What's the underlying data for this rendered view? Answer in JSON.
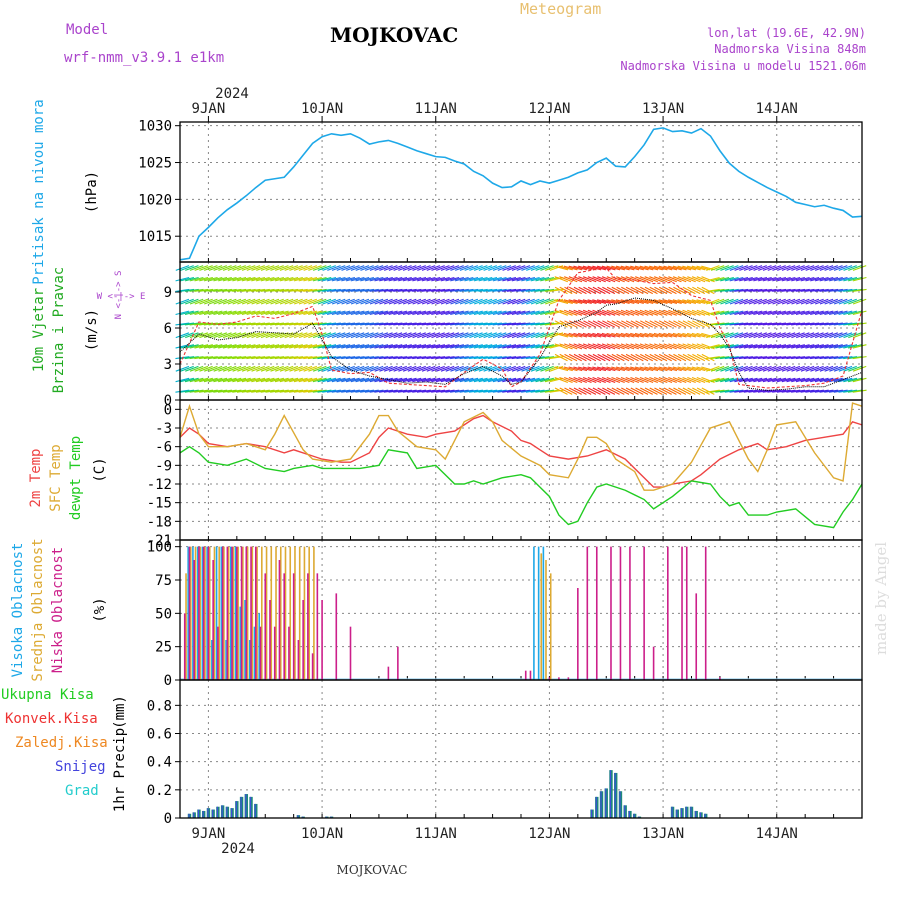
{
  "header": {
    "model_label": "Model",
    "model_name": "wrf-nmm_v3.9.1 e1km",
    "station": "MOJKOVAC",
    "meteogram": "Meteogram",
    "lonlat": "lon,lat (19.6E, 42.9N)",
    "elevation": "Nadmorska Visina 848m",
    "model_elevation": "Nadmorska Visina u modelu 1521.06m",
    "footer_station": "MOJKOVAC",
    "credit": "made by Angel"
  },
  "colors": {
    "pressure": "#1ea8e8",
    "temp2m": "#ee4444",
    "sfc": "#ddaa33",
    "dew": "#22cc22",
    "high_cloud": "#1ea8e8",
    "mid_cloud": "#ddaa33",
    "low_cloud": "#cc1f8a",
    "title_purple": "#aa44cc",
    "meteogram_tan": "#e8c070"
  },
  "time_axis": {
    "year": "2024",
    "start_hour": 0,
    "end_hour": 144,
    "days": [
      {
        "label": "9JAN",
        "hour": 6
      },
      {
        "label": "10JAN",
        "hour": 30
      },
      {
        "label": "11JAN",
        "hour": 54
      },
      {
        "label": "12JAN",
        "hour": 78
      },
      {
        "label": "13JAN",
        "hour": 102
      },
      {
        "label": "14JAN",
        "hour": 126
      }
    ]
  },
  "chart_data": [
    {
      "type": "line",
      "panel": "pressure",
      "ylabel": "Pritisak na nivou mora",
      "unit": "(hPa)",
      "ylim": [
        1011.5,
        1030.5
      ],
      "yticks": [
        1015,
        1020,
        1025,
        1030
      ],
      "grid": true,
      "series": [
        {
          "x": [
            0,
            2,
            3,
            4,
            6,
            8,
            10,
            12,
            14,
            16,
            18,
            20,
            22,
            24,
            26,
            28,
            30,
            32,
            34,
            36,
            38,
            40,
            42,
            44,
            46,
            48,
            50,
            52,
            54,
            56,
            58,
            60,
            62,
            64,
            66,
            68,
            70,
            72,
            74,
            76,
            78,
            80,
            82,
            84,
            86,
            88,
            90,
            92,
            94,
            96,
            98,
            100,
            102,
            104,
            106,
            108,
            110,
            112,
            114,
            116,
            118,
            120,
            122,
            124,
            126,
            128,
            130,
            132,
            134,
            136,
            138,
            140,
            142,
            144
          ],
          "y": [
            1011.8,
            1012.0,
            1013.5,
            1015.0,
            1016.2,
            1017.5,
            1018.6,
            1019.5,
            1020.5,
            1021.6,
            1022.6,
            1022.8,
            1023.0,
            1024.4,
            1026.0,
            1027.6,
            1028.5,
            1028.9,
            1028.7,
            1028.9,
            1028.3,
            1027.5,
            1027.8,
            1028.0,
            1027.6,
            1027.1,
            1026.6,
            1026.2,
            1025.8,
            1025.7,
            1025.2,
            1024.8,
            1023.8,
            1023.2,
            1022.2,
            1021.6,
            1021.7,
            1022.5,
            1022.0,
            1022.5,
            1022.2,
            1022.6,
            1023.0,
            1023.6,
            1024.0,
            1025.0,
            1025.6,
            1024.5,
            1024.4,
            1025.8,
            1027.4,
            1029.5,
            1029.7,
            1029.2,
            1029.3,
            1029.0,
            1029.6,
            1028.6,
            1026.6,
            1024.9,
            1023.8,
            1023.0,
            1022.3,
            1021.6,
            1021.0,
            1020.4,
            1019.6,
            1019.3,
            1019.0,
            1019.2,
            1018.8,
            1018.5,
            1017.6,
            1017.7
          ]
        }
      ]
    },
    {
      "type": "line",
      "panel": "wind",
      "ylabel": "10m Vjetar Brzina i Pravac",
      "unit": "(m/s)",
      "compass": "W <-|-> E",
      "compass_vertical": "N <-|-> S",
      "ylim": [
        0,
        11.5
      ],
      "yticks": [
        0,
        3,
        6,
        9
      ],
      "grid": true,
      "series": [
        {
          "name": "speed",
          "x": [
            0,
            4,
            8,
            12,
            16,
            20,
            24,
            28,
            30,
            32,
            36,
            40,
            44,
            48,
            52,
            56,
            60,
            64,
            68,
            70,
            72,
            76,
            80,
            84,
            88,
            90,
            92,
            96,
            100,
            104,
            108,
            112,
            114,
            116,
            118,
            120,
            124,
            128,
            132,
            136,
            140,
            144
          ],
          "y": [
            4.0,
            5.5,
            5.0,
            5.2,
            5.7,
            5.6,
            5.5,
            6.4,
            5.0,
            3.6,
            2.5,
            2.0,
            1.7,
            1.4,
            1.5,
            1.3,
            2.2,
            2.8,
            2.0,
            1.3,
            1.5,
            3.5,
            6.1,
            6.6,
            7.3,
            7.9,
            8.0,
            8.5,
            8.3,
            7.6,
            6.8,
            6.3,
            5.5,
            4.3,
            2.3,
            1.0,
            0.8,
            0.9,
            1.1,
            1.1,
            1.7,
            2.3
          ]
        },
        {
          "name": "gust",
          "x": [
            0,
            4,
            8,
            12,
            16,
            20,
            24,
            28,
            30,
            32,
            36,
            40,
            44,
            48,
            52,
            56,
            60,
            64,
            68,
            70,
            72,
            76,
            80,
            84,
            88,
            90,
            92,
            96,
            100,
            104,
            108,
            112,
            114,
            116,
            118,
            120,
            124,
            128,
            132,
            136,
            140,
            144
          ],
          "y": [
            3.0,
            6.5,
            6.3,
            6.5,
            7.0,
            6.8,
            7.2,
            7.8,
            5.5,
            2.5,
            2.2,
            2.3,
            1.4,
            1.3,
            1.2,
            1.1,
            2.3,
            3.4,
            2.6,
            1.1,
            1.5,
            3.8,
            8.3,
            10.6,
            10.9,
            11.0,
            10.1,
            10.0,
            9.7,
            9.8,
            8.7,
            8.3,
            6.0,
            4.5,
            1.3,
            1.2,
            1.0,
            1.1,
            1.2,
            1.4,
            2.0,
            7.5
          ]
        }
      ]
    },
    {
      "type": "line",
      "panel": "temperature",
      "ylabel": "2m Temp / SFC Temp / dewpt Temp",
      "unit": "(C)",
      "ylim": [
        -21,
        1.5
      ],
      "yticks": [
        0,
        -3,
        -6,
        -9,
        -12,
        -15,
        -18,
        -21
      ],
      "grid": true,
      "series": [
        {
          "name": "2m Temp",
          "x": [
            0,
            2,
            4,
            6,
            10,
            14,
            18,
            22,
            24,
            28,
            30,
            34,
            36,
            40,
            42,
            44,
            48,
            52,
            54,
            58,
            60,
            62,
            64,
            66,
            70,
            72,
            74,
            76,
            78,
            82,
            86,
            90,
            94,
            98,
            100,
            102,
            104,
            108,
            110,
            114,
            118,
            120,
            122,
            124,
            128,
            132,
            136,
            140,
            142,
            144
          ],
          "y": [
            -4.5,
            -3.0,
            -4.0,
            -5.5,
            -6.0,
            -5.5,
            -6.0,
            -7.0,
            -6.5,
            -7.5,
            -8.0,
            -8.5,
            -8.5,
            -7.0,
            -4.5,
            -3.0,
            -4.0,
            -4.5,
            -4.0,
            -3.5,
            -2.5,
            -1.5,
            -1.0,
            -2.0,
            -3.5,
            -5.0,
            -5.5,
            -6.5,
            -7.5,
            -8.0,
            -7.5,
            -6.5,
            -8.0,
            -11.0,
            -12.5,
            -12.5,
            -12.0,
            -11.5,
            -10.5,
            -8.0,
            -6.5,
            -6.0,
            -5.5,
            -6.5,
            -6.0,
            -5.0,
            -4.5,
            -4.0,
            -2.0,
            -2.5
          ]
        },
        {
          "name": "SFC Temp",
          "x": [
            0,
            2,
            4,
            6,
            10,
            14,
            18,
            20,
            22,
            26,
            28,
            32,
            36,
            40,
            42,
            44,
            46,
            50,
            54,
            56,
            60,
            64,
            66,
            68,
            72,
            76,
            78,
            82,
            84,
            86,
            88,
            90,
            92,
            96,
            98,
            100,
            104,
            108,
            112,
            116,
            120,
            122,
            124,
            126,
            130,
            134,
            138,
            140,
            142,
            144
          ],
          "y": [
            -4.5,
            0.5,
            -4.0,
            -6.0,
            -6.0,
            -5.5,
            -6.5,
            -4.0,
            -1.0,
            -6.5,
            -8.0,
            -8.5,
            -8.0,
            -4.0,
            -1.0,
            -1.0,
            -3.5,
            -6.0,
            -6.5,
            -8.0,
            -2.0,
            -0.5,
            -2.0,
            -5.0,
            -7.5,
            -9.0,
            -10.5,
            -11.0,
            -8.0,
            -4.5,
            -4.5,
            -5.5,
            -8.0,
            -10.0,
            -13.0,
            -13.0,
            -12.0,
            -8.5,
            -3.0,
            -2.0,
            -8.0,
            -10.0,
            -6.5,
            -2.5,
            -2.0,
            -7.0,
            -11.0,
            -11.5,
            1.0,
            0.5
          ]
        },
        {
          "name": "dewpt Temp",
          "x": [
            0,
            2,
            4,
            6,
            10,
            14,
            18,
            22,
            24,
            28,
            30,
            34,
            38,
            42,
            44,
            48,
            50,
            54,
            58,
            60,
            62,
            64,
            68,
            72,
            74,
            76,
            78,
            80,
            82,
            84,
            86,
            88,
            90,
            94,
            98,
            100,
            104,
            108,
            112,
            114,
            116,
            118,
            120,
            124,
            126,
            130,
            134,
            138,
            140,
            142,
            144
          ],
          "y": [
            -7.0,
            -6.0,
            -7.0,
            -8.5,
            -9.0,
            -8.0,
            -9.5,
            -10.0,
            -9.5,
            -9.0,
            -9.5,
            -9.5,
            -9.5,
            -9.0,
            -6.5,
            -7.0,
            -9.5,
            -9.0,
            -12.0,
            -12.0,
            -11.5,
            -12.0,
            -11.0,
            -10.5,
            -11.0,
            -12.5,
            -14.0,
            -17.0,
            -18.5,
            -18.0,
            -15.0,
            -12.5,
            -12.0,
            -13.0,
            -14.5,
            -16.0,
            -14.0,
            -11.5,
            -12.0,
            -14.0,
            -15.5,
            -15.0,
            -17.0,
            -17.0,
            -16.5,
            -16.0,
            -18.5,
            -19.0,
            -16.5,
            -14.5,
            -12.0
          ]
        }
      ]
    },
    {
      "type": "bar",
      "panel": "clouds",
      "ylabel": "Visoka Oblacnost / Srednja Oblacnost / Niska Oblacnost",
      "unit": "(%)",
      "ylim": [
        0,
        105
      ],
      "yticks": [
        0,
        25,
        50,
        75,
        100
      ],
      "grid": true,
      "series": [
        {
          "name": "Visoka Oblacnost",
          "x": [
            2,
            3,
            4,
            5,
            6,
            7,
            8,
            9,
            10,
            11,
            12,
            13,
            14,
            15,
            16,
            17,
            75,
            76,
            77
          ],
          "y": [
            100,
            100,
            100,
            100,
            100,
            30,
            100,
            100,
            30,
            100,
            100,
            55,
            60,
            30,
            40,
            50,
            100,
            100,
            100
          ]
        },
        {
          "name": "Srednja Oblacnost",
          "x": [
            1,
            2,
            3,
            4,
            5,
            6,
            7,
            8,
            9,
            10,
            11,
            12,
            13,
            14,
            15,
            16,
            17,
            18,
            19,
            20,
            21,
            22,
            23,
            24,
            25,
            26,
            27,
            28,
            76,
            77,
            78
          ],
          "y": [
            80,
            100,
            100,
            100,
            100,
            100,
            100,
            100,
            100,
            100,
            100,
            100,
            100,
            100,
            100,
            100,
            100,
            100,
            100,
            100,
            100,
            100,
            100,
            100,
            100,
            100,
            100,
            100,
            95,
            90,
            80
          ]
        },
        {
          "name": "Niska Oblacnost",
          "x": [
            1,
            2,
            3,
            4,
            5,
            6,
            7,
            8,
            9,
            10,
            11,
            12,
            13,
            14,
            15,
            16,
            17,
            18,
            19,
            20,
            21,
            22,
            23,
            24,
            25,
            26,
            27,
            28,
            29,
            30,
            33,
            36,
            44,
            46,
            73,
            74,
            78,
            80,
            82,
            84,
            86,
            88,
            91,
            93,
            95,
            98,
            100,
            103,
            106,
            107,
            109,
            111,
            114
          ],
          "y": [
            50,
            100,
            90,
            100,
            100,
            100,
            90,
            40,
            100,
            100,
            100,
            100,
            100,
            100,
            100,
            100,
            40,
            80,
            60,
            40,
            90,
            80,
            40,
            80,
            30,
            60,
            80,
            20,
            80,
            60,
            65,
            40,
            10,
            25,
            7,
            7,
            2,
            2,
            2,
            69,
            100,
            100,
            100,
            100,
            100,
            100,
            25,
            100,
            100,
            100,
            65,
            100,
            2
          ]
        }
      ]
    },
    {
      "type": "bar",
      "panel": "precipitation",
      "ylabel": "1hr Precip",
      "unit": "(mm)",
      "ylim": [
        0,
        0.98
      ],
      "yticks": [
        0,
        0.2,
        0.4,
        0.6,
        0.8
      ],
      "grid": true,
      "legend": [
        "Ukupna Kisa",
        "Konvek.Kisa",
        "Zaledj.Kisa",
        "Snijeg",
        "Grad"
      ],
      "series": [
        {
          "name": "Snijeg",
          "x": [
            2,
            3,
            4,
            5,
            6,
            7,
            8,
            9,
            10,
            11,
            12,
            13,
            14,
            15,
            16,
            25,
            26,
            31,
            32,
            87,
            88,
            89,
            90,
            91,
            92,
            93,
            94,
            95,
            96,
            97,
            104,
            105,
            106,
            107,
            108,
            109,
            110,
            111
          ],
          "y": [
            0.03,
            0.04,
            0.06,
            0.05,
            0.07,
            0.06,
            0.08,
            0.09,
            0.08,
            0.07,
            0.12,
            0.15,
            0.17,
            0.15,
            0.1,
            0.02,
            0.01,
            0.01,
            0.01,
            0.06,
            0.15,
            0.19,
            0.21,
            0.34,
            0.32,
            0.19,
            0.09,
            0.05,
            0.03,
            0.01,
            0.08,
            0.06,
            0.07,
            0.08,
            0.08,
            0.05,
            0.04,
            0.03
          ]
        }
      ]
    }
  ]
}
